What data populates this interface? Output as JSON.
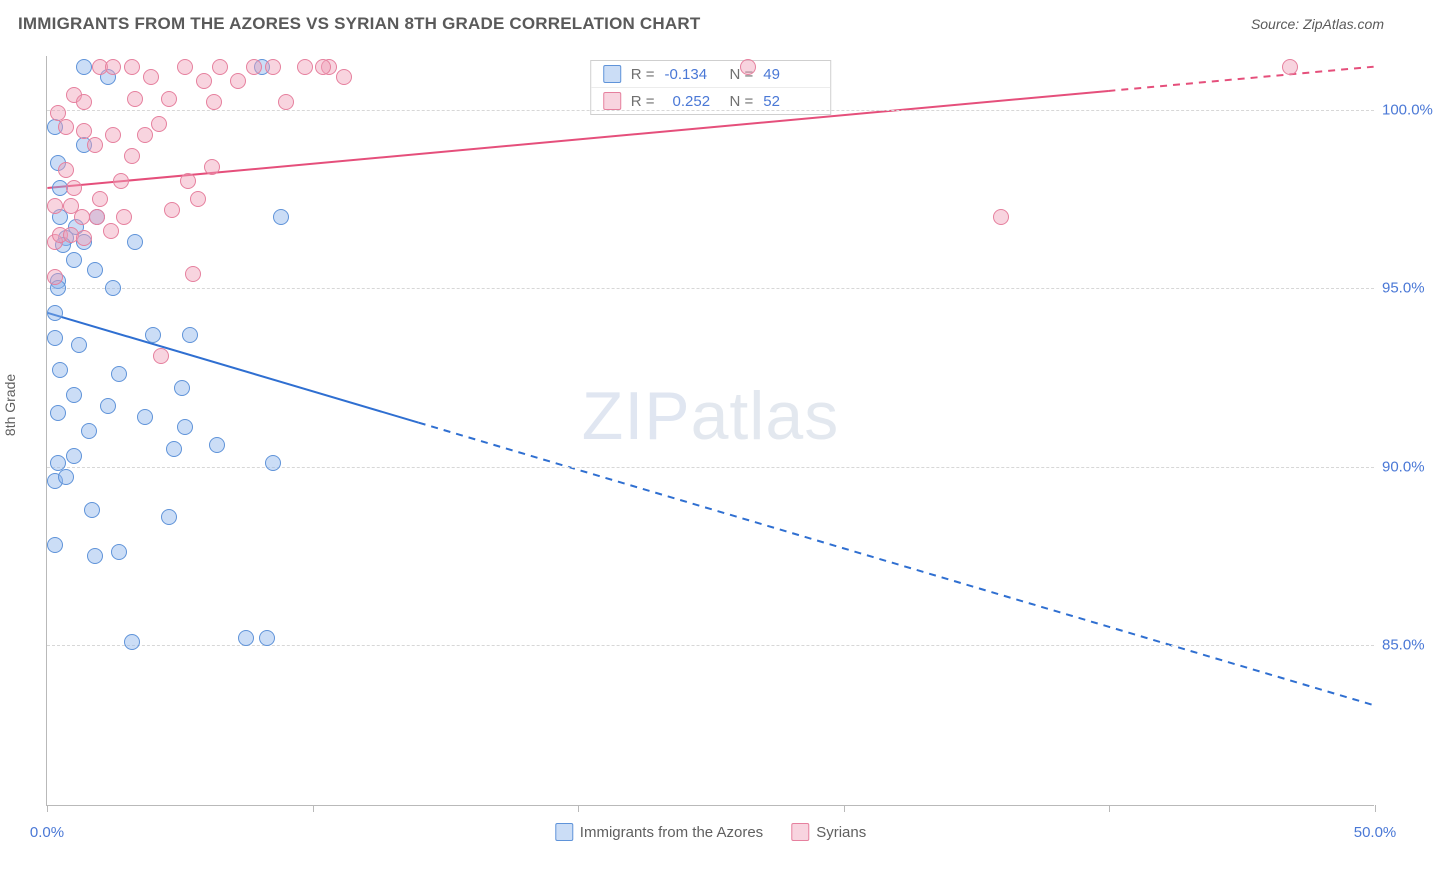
{
  "header": {
    "title": "IMMIGRANTS FROM THE AZORES VS SYRIAN 8TH GRADE CORRELATION CHART",
    "source_prefix": "Source: ",
    "source_name": "ZipAtlas.com"
  },
  "watermark": {
    "part1": "ZIP",
    "part2": "atlas"
  },
  "chart": {
    "type": "scatter",
    "background_color": "#ffffff",
    "grid_color": "#d7d7d7",
    "axis_color": "#b9b9b9",
    "tick_label_color": "#4a78d6",
    "ylabel": "8th Grade",
    "xlim": [
      0,
      50
    ],
    "ylim": [
      80.5,
      101.5
    ],
    "xticks": [
      0,
      10,
      20,
      30,
      40,
      50
    ],
    "xtick_labels": {
      "0": "0.0%",
      "50": "50.0%"
    },
    "yticks": [
      85,
      90,
      95,
      100
    ],
    "ytick_labels": [
      "85.0%",
      "90.0%",
      "95.0%",
      "100.0%"
    ],
    "marker_radius": 8,
    "series": [
      {
        "id": "azores",
        "label": "Immigrants from the Azores",
        "fill_color": "rgba(140,180,235,0.45)",
        "stroke_color": "#5f93d9",
        "R": "-0.134",
        "N": "49",
        "trend": {
          "x1": 0,
          "y1": 94.3,
          "x2": 50,
          "y2": 83.3,
          "solid_until_x": 14,
          "color": "#2f6fd1",
          "width": 2
        },
        "points": [
          [
            0.3,
            94.3
          ],
          [
            0.3,
            93.6
          ],
          [
            0.4,
            95.2
          ],
          [
            0.7,
            96.4
          ],
          [
            0.6,
            96.2
          ],
          [
            1.4,
            96.3
          ],
          [
            0.4,
            95.0
          ],
          [
            1.0,
            95.8
          ],
          [
            0.3,
            89.6
          ],
          [
            0.4,
            90.1
          ],
          [
            0.7,
            89.7
          ],
          [
            1.0,
            90.3
          ],
          [
            1.6,
            91.0
          ],
          [
            2.3,
            91.7
          ],
          [
            2.7,
            92.6
          ],
          [
            1.2,
            93.4
          ],
          [
            4.0,
            93.7
          ],
          [
            5.4,
            93.7
          ],
          [
            5.1,
            92.2
          ],
          [
            3.7,
            91.4
          ],
          [
            4.8,
            90.5
          ],
          [
            5.2,
            91.1
          ],
          [
            6.4,
            90.6
          ],
          [
            0.5,
            92.7
          ],
          [
            8.5,
            90.1
          ],
          [
            1.7,
            88.8
          ],
          [
            4.6,
            88.6
          ],
          [
            0.3,
            87.8
          ],
          [
            1.8,
            87.5
          ],
          [
            2.7,
            87.6
          ],
          [
            3.2,
            85.1
          ],
          [
            7.5,
            85.2
          ],
          [
            8.3,
            85.2
          ],
          [
            1.1,
            96.7
          ],
          [
            1.9,
            97.0
          ],
          [
            3.3,
            96.3
          ],
          [
            1.4,
            101.2
          ],
          [
            2.3,
            100.9
          ],
          [
            1.4,
            99.0
          ],
          [
            0.5,
            97.8
          ],
          [
            0.5,
            97.0
          ],
          [
            1.8,
            95.5
          ],
          [
            2.5,
            95.0
          ],
          [
            0.3,
            99.5
          ],
          [
            0.4,
            98.5
          ],
          [
            8.8,
            97.0
          ],
          [
            8.1,
            101.2
          ],
          [
            1.0,
            92.0
          ],
          [
            0.4,
            91.5
          ]
        ]
      },
      {
        "id": "syrians",
        "label": "Syrians",
        "fill_color": "rgba(240,160,185,0.45)",
        "stroke_color": "#e6809e",
        "R": "0.252",
        "N": "52",
        "trend": {
          "x1": 0,
          "y1": 97.8,
          "x2": 50,
          "y2": 101.2,
          "solid_until_x": 40,
          "color": "#e54f7b",
          "width": 2
        },
        "points": [
          [
            0.3,
            96.3
          ],
          [
            0.5,
            96.5
          ],
          [
            0.9,
            96.5
          ],
          [
            1.4,
            96.4
          ],
          [
            0.3,
            97.3
          ],
          [
            0.9,
            97.3
          ],
          [
            1.3,
            97.0
          ],
          [
            1.9,
            97.0
          ],
          [
            2.4,
            96.6
          ],
          [
            2.9,
            97.0
          ],
          [
            0.7,
            98.3
          ],
          [
            1.0,
            97.8
          ],
          [
            2.0,
            97.5
          ],
          [
            2.8,
            98.0
          ],
          [
            3.2,
            98.7
          ],
          [
            3.7,
            99.3
          ],
          [
            4.2,
            99.6
          ],
          [
            2.5,
            99.3
          ],
          [
            1.8,
            99.0
          ],
          [
            1.4,
            99.4
          ],
          [
            0.7,
            99.5
          ],
          [
            0.4,
            99.9
          ],
          [
            1.0,
            100.4
          ],
          [
            1.4,
            100.2
          ],
          [
            2.0,
            101.2
          ],
          [
            2.5,
            101.2
          ],
          [
            3.2,
            101.2
          ],
          [
            3.9,
            100.9
          ],
          [
            4.6,
            100.3
          ],
          [
            5.2,
            101.2
          ],
          [
            5.9,
            100.8
          ],
          [
            6.5,
            101.2
          ],
          [
            7.2,
            100.8
          ],
          [
            7.8,
            101.2
          ],
          [
            8.5,
            101.2
          ],
          [
            9.0,
            100.2
          ],
          [
            9.7,
            101.2
          ],
          [
            10.6,
            101.2
          ],
          [
            11.2,
            100.9
          ],
          [
            10.4,
            101.2
          ],
          [
            5.7,
            97.5
          ],
          [
            6.2,
            98.4
          ],
          [
            5.3,
            98.0
          ],
          [
            4.7,
            97.2
          ],
          [
            4.3,
            93.1
          ],
          [
            5.5,
            95.4
          ],
          [
            6.3,
            100.2
          ],
          [
            26.4,
            101.2
          ],
          [
            35.9,
            97.0
          ],
          [
            46.8,
            101.2
          ],
          [
            0.3,
            95.3
          ],
          [
            3.3,
            100.3
          ]
        ]
      }
    ],
    "legend_top": {
      "r_label": "R =",
      "n_label": "N ="
    }
  }
}
